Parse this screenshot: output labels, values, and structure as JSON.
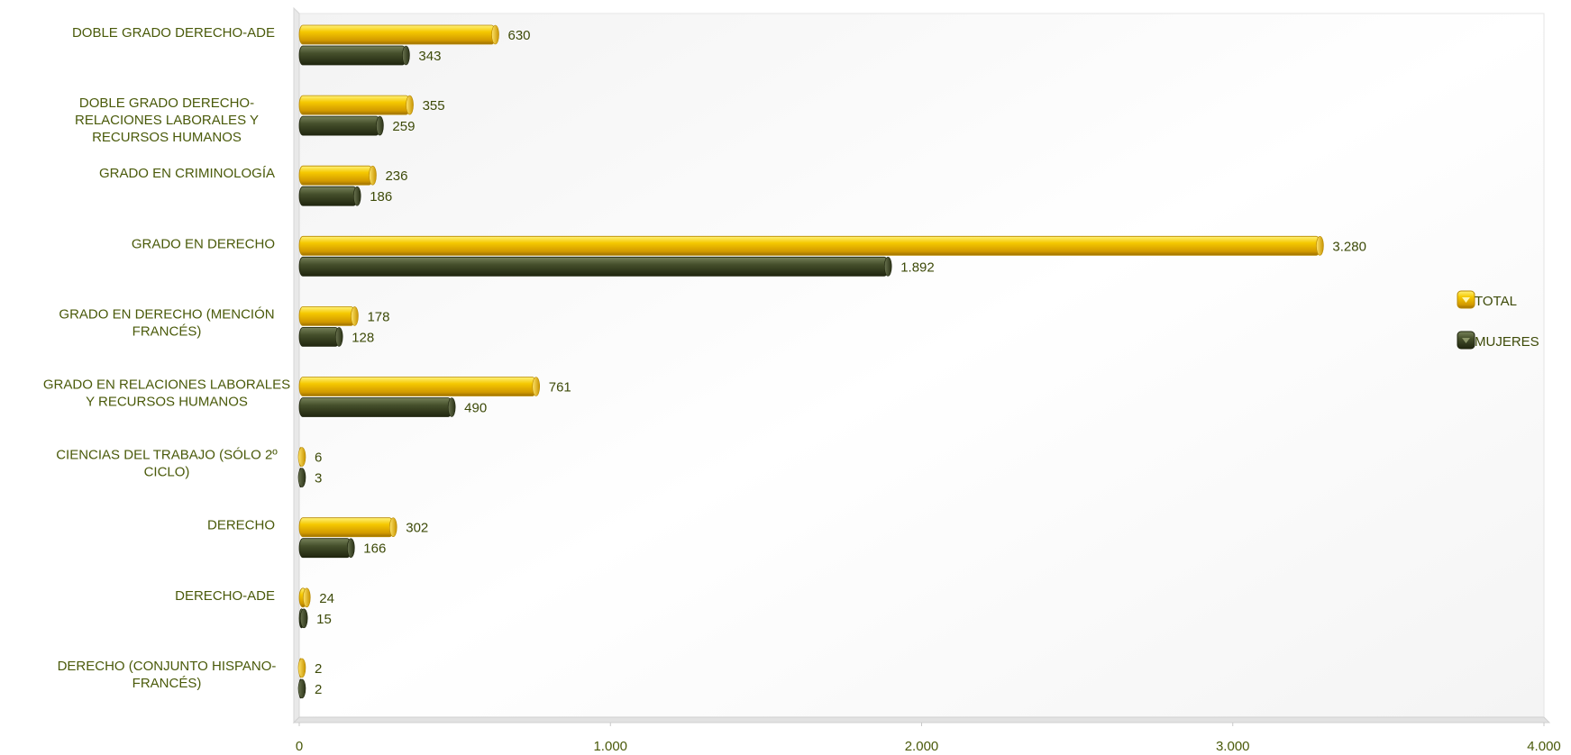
{
  "chart_data": {
    "type": "bar",
    "orientation": "horizontal",
    "categories": [
      "DOBLE GRADO DERECHO-ADE",
      "DOBLE GRADO DERECHO-RELACIONES LABORALES Y RECURSOS HUMANOS",
      "GRADO EN CRIMINOLOGÍA",
      "GRADO EN DERECHO",
      "GRADO EN DERECHO (MENCIÓN FRANCÉS)",
      "GRADO EN RELACIONES LABORALES Y RECURSOS HUMANOS",
      "CIENCIAS DEL TRABAJO (SÓLO 2º CICLO)",
      "DERECHO",
      "DERECHO-ADE",
      "DERECHO (CONJUNTO HISPANO-FRANCÉS)"
    ],
    "category_lines": [
      [
        "DOBLE GRADO DERECHO-ADE"
      ],
      [
        "DOBLE GRADO DERECHO-",
        "RELACIONES LABORALES Y",
        "RECURSOS HUMANOS"
      ],
      [
        "GRADO EN CRIMINOLOGÍA"
      ],
      [
        "GRADO EN DERECHO"
      ],
      [
        "GRADO EN DERECHO (MENCIÓN",
        "FRANCÉS)"
      ],
      [
        "GRADO EN RELACIONES LABORALES",
        "Y RECURSOS HUMANOS"
      ],
      [
        "CIENCIAS DEL TRABAJO (SÓLO 2º",
        "CICLO)"
      ],
      [
        "DERECHO"
      ],
      [
        "DERECHO-ADE"
      ],
      [
        "DERECHO (CONJUNTO HISPANO-",
        "FRANCÉS)"
      ]
    ],
    "series": [
      {
        "name": "TOTAL",
        "color": "#f2c200",
        "values": [
          630,
          355,
          236,
          3280,
          178,
          761,
          6,
          302,
          24,
          2
        ],
        "value_labels": [
          "630",
          "355",
          "236",
          "3.280",
          "178",
          "761",
          "6",
          "302",
          "24",
          "2"
        ]
      },
      {
        "name": "MUJERES",
        "color": "#3f4a26",
        "values": [
          343,
          259,
          186,
          1892,
          128,
          490,
          3,
          166,
          15,
          2
        ],
        "value_labels": [
          "343",
          "259",
          "186",
          "1.892",
          "128",
          "490",
          "3",
          "166",
          "15",
          "2"
        ]
      }
    ],
    "xlim": [
      0,
      4000
    ],
    "x_ticks": [
      0,
      1000,
      2000,
      3000,
      4000
    ],
    "x_tick_labels": [
      "0",
      "1.000",
      "2.000",
      "3.000",
      "4.000"
    ],
    "legend_position": "right",
    "grid": false,
    "style": "3d-cylinder"
  }
}
